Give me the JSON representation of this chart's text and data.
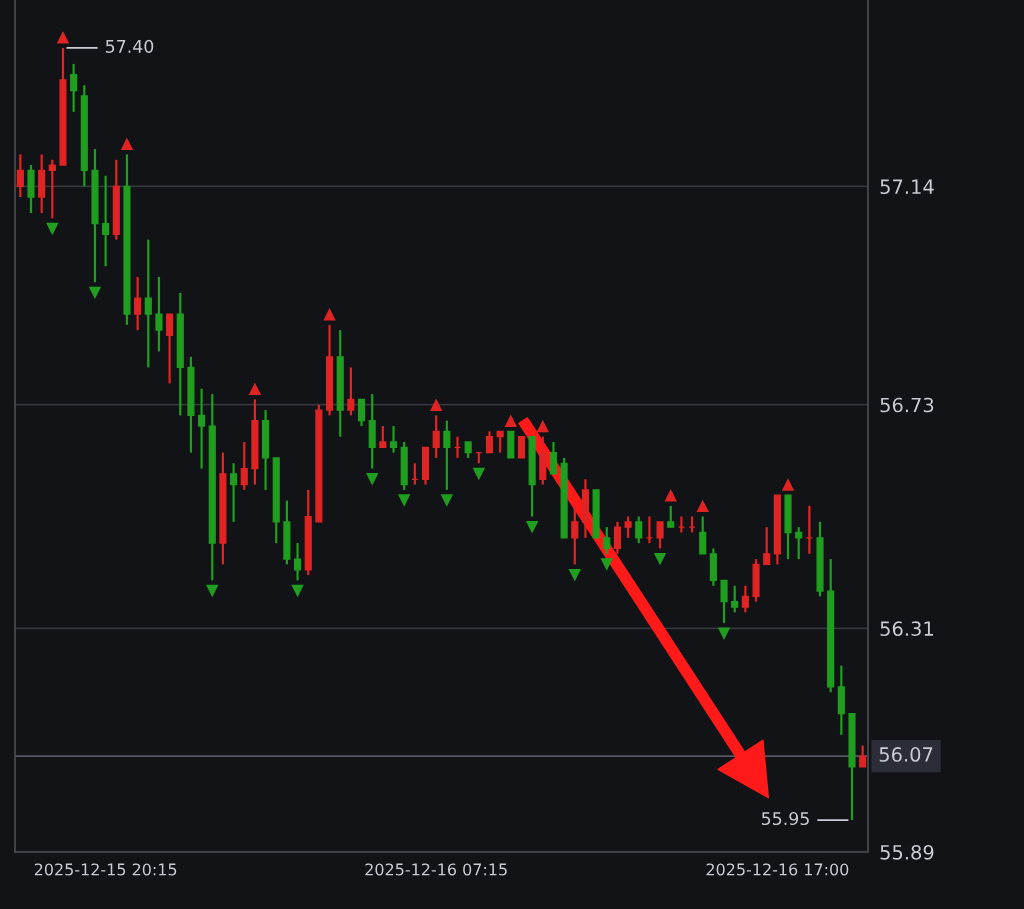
{
  "chart_data": {
    "type": "candlestick",
    "categories": [
      null,
      null,
      null,
      null,
      null,
      null,
      null,
      null,
      "2025-12-15 20:15",
      null,
      null,
      null,
      null,
      null,
      null,
      null,
      null,
      null,
      null,
      null,
      null,
      null,
      null,
      null,
      null,
      null,
      null,
      null,
      null,
      null,
      null,
      null,
      null,
      null,
      null,
      null,
      null,
      null,
      null,
      "2025-12-16 07:15",
      null,
      null,
      null,
      null,
      null,
      null,
      null,
      null,
      null,
      null,
      null,
      null,
      null,
      null,
      null,
      null,
      null,
      null,
      null,
      null,
      null,
      null,
      null,
      null,
      null,
      null,
      null,
      null,
      null,
      null,
      null,
      "2025-12-16 17:00",
      null,
      null,
      null,
      null,
      null,
      null,
      null,
      null
    ],
    "ohlc": [
      [
        57.14,
        57.2,
        57.12,
        57.17
      ],
      [
        57.17,
        57.18,
        57.09,
        57.12
      ],
      [
        57.12,
        57.2,
        57.09,
        57.17
      ],
      [
        57.17,
        57.19,
        57.08,
        57.18
      ],
      [
        57.18,
        57.4,
        57.18,
        57.34
      ],
      [
        57.35,
        57.37,
        57.28,
        57.32
      ],
      [
        57.31,
        57.33,
        57.14,
        57.17
      ],
      [
        57.17,
        57.21,
        56.96,
        57.07
      ],
      [
        57.07,
        57.16,
        56.99,
        57.05
      ],
      [
        57.05,
        57.19,
        57.04,
        57.14
      ],
      [
        57.14,
        57.2,
        56.88,
        56.9
      ],
      [
        56.9,
        56.97,
        56.87,
        56.93
      ],
      [
        56.93,
        57.04,
        56.8,
        56.9
      ],
      [
        56.9,
        56.97,
        56.83,
        56.87
      ],
      [
        56.86,
        56.9,
        56.77,
        56.9
      ],
      [
        56.9,
        56.94,
        56.71,
        56.8
      ],
      [
        56.8,
        56.82,
        56.64,
        56.71
      ],
      [
        56.71,
        56.76,
        56.61,
        56.69
      ],
      [
        56.69,
        56.75,
        56.4,
        56.47
      ],
      [
        56.47,
        56.64,
        56.43,
        56.6
      ],
      [
        56.6,
        56.62,
        56.51,
        56.58
      ],
      [
        56.58,
        56.66,
        56.57,
        56.61
      ],
      [
        56.61,
        56.74,
        56.58,
        56.7
      ],
      [
        56.7,
        56.72,
        56.57,
        56.63
      ],
      [
        56.63,
        56.63,
        56.47,
        56.51
      ],
      [
        56.51,
        56.55,
        56.43,
        56.44
      ],
      [
        56.44,
        56.47,
        56.4,
        56.42
      ],
      [
        56.42,
        56.57,
        56.41,
        56.52
      ],
      [
        56.51,
        56.73,
        56.51,
        56.72
      ],
      [
        56.72,
        56.88,
        56.71,
        56.82
      ],
      [
        56.82,
        56.87,
        56.67,
        56.72
      ],
      [
        56.72,
        56.8,
        56.71,
        56.74
      ],
      [
        56.74,
        56.74,
        56.69,
        56.7
      ],
      [
        56.7,
        56.75,
        56.61,
        56.65
      ],
      [
        56.65,
        56.69,
        56.65,
        56.66
      ],
      [
        56.66,
        56.69,
        56.64,
        56.65
      ],
      [
        56.65,
        56.66,
        56.57,
        56.58
      ],
      [
        56.59,
        56.62,
        56.58,
        56.59
      ],
      [
        56.59,
        56.65,
        56.58,
        56.65
      ],
      [
        56.65,
        56.71,
        56.63,
        56.68
      ],
      [
        56.68,
        56.7,
        56.57,
        56.65
      ],
      [
        56.65,
        56.67,
        56.63,
        56.65
      ],
      [
        56.66,
        56.66,
        56.63,
        56.64
      ],
      [
        56.64,
        56.64,
        56.62,
        56.64
      ],
      [
        56.64,
        56.68,
        56.64,
        56.67
      ],
      [
        56.67,
        56.68,
        56.64,
        56.68
      ],
      [
        56.68,
        56.68,
        56.63,
        56.63
      ],
      [
        56.63,
        56.67,
        56.63,
        56.67
      ],
      [
        56.67,
        56.67,
        56.52,
        56.58
      ],
      [
        56.59,
        56.67,
        56.58,
        56.64
      ],
      [
        56.64,
        56.66,
        56.6,
        56.6
      ],
      [
        56.62,
        56.63,
        56.48,
        56.48
      ],
      [
        56.48,
        56.54,
        56.43,
        56.51
      ],
      [
        56.51,
        56.59,
        56.48,
        56.57
      ],
      [
        56.57,
        56.57,
        56.48,
        56.48
      ],
      [
        56.48,
        56.5,
        56.45,
        56.46
      ],
      [
        56.46,
        56.51,
        56.45,
        56.5
      ],
      [
        56.5,
        56.52,
        56.48,
        56.51
      ],
      [
        56.51,
        56.52,
        56.47,
        56.48
      ],
      [
        56.48,
        56.52,
        56.47,
        56.48
      ],
      [
        56.48,
        56.51,
        56.46,
        56.51
      ],
      [
        56.51,
        56.54,
        56.5,
        56.5
      ],
      [
        56.5,
        56.52,
        56.49,
        56.5
      ],
      [
        56.5,
        56.52,
        56.49,
        56.5
      ],
      [
        56.49,
        56.52,
        56.45,
        56.45
      ],
      [
        56.45,
        56.46,
        56.39,
        56.4
      ],
      [
        56.4,
        56.4,
        56.32,
        56.36
      ],
      [
        56.36,
        56.39,
        56.34,
        56.35
      ],
      [
        56.35,
        56.39,
        56.34,
        56.37
      ],
      [
        56.37,
        56.44,
        56.36,
        56.43
      ],
      [
        56.43,
        56.5,
        56.43,
        56.45
      ],
      [
        56.45,
        56.56,
        56.43,
        56.56
      ],
      [
        56.56,
        56.56,
        56.44,
        56.49
      ],
      [
        56.49,
        56.5,
        56.44,
        56.48
      ],
      [
        56.48,
        56.54,
        56.45,
        56.48
      ],
      [
        56.48,
        56.51,
        56.37,
        56.38
      ],
      [
        56.38,
        56.44,
        56.19,
        56.2
      ],
      [
        56.2,
        56.24,
        56.11,
        56.15
      ],
      [
        56.15,
        56.15,
        55.95,
        56.05
      ],
      [
        56.05,
        56.09,
        56.05,
        56.07
      ]
    ],
    "colors": [
      "#e02424",
      "#1f9e1f",
      "#e02424",
      "#e02424",
      "#e02424",
      "#1f9e1f",
      "#1f9e1f",
      "#1f9e1f",
      "#1f9e1f",
      "#e02424",
      "#1f9e1f",
      "#e02424",
      "#1f9e1f",
      "#1f9e1f",
      "#e02424",
      "#1f9e1f",
      "#1f9e1f",
      "#1f9e1f",
      "#1f9e1f",
      "#e02424",
      "#1f9e1f",
      "#e02424",
      "#e02424",
      "#1f9e1f",
      "#1f9e1f",
      "#1f9e1f",
      "#1f9e1f",
      "#e02424",
      "#e02424",
      "#e02424",
      "#1f9e1f",
      "#e02424",
      "#1f9e1f",
      "#1f9e1f",
      "#e02424",
      "#1f9e1f",
      "#1f9e1f",
      "#e02424",
      "#e02424",
      "#e02424",
      "#1f9e1f",
      "#e02424",
      "#1f9e1f",
      "#e02424",
      "#e02424",
      "#e02424",
      "#1f9e1f",
      "#e02424",
      "#1f9e1f",
      "#e02424",
      "#1f9e1f",
      "#1f9e1f",
      "#e02424",
      "#e02424",
      "#1f9e1f",
      "#1f9e1f",
      "#e02424",
      "#e02424",
      "#1f9e1f",
      "#e02424",
      "#e02424",
      "#1f9e1f",
      "#e02424",
      "#e02424",
      "#1f9e1f",
      "#1f9e1f",
      "#1f9e1f",
      "#1f9e1f",
      "#e02424",
      "#e02424",
      "#e02424",
      "#e02424",
      "#1f9e1f",
      "#1f9e1f",
      "#e02424",
      "#1f9e1f",
      "#1f9e1f",
      "#1f9e1f",
      "#1f9e1f",
      "#e02424"
    ],
    "series": [
      {
        "type": "scatter",
        "marker": "triangle",
        "color": "#e02424",
        "values": [
          null,
          null,
          null,
          null,
          57.42,
          null,
          null,
          null,
          null,
          null,
          57.22,
          null,
          null,
          null,
          null,
          null,
          null,
          null,
          null,
          null,
          null,
          null,
          56.76,
          null,
          null,
          null,
          null,
          null,
          null,
          56.9,
          null,
          null,
          null,
          null,
          null,
          null,
          null,
          null,
          null,
          56.73,
          null,
          null,
          null,
          null,
          null,
          null,
          56.7,
          null,
          null,
          56.69,
          null,
          null,
          null,
          null,
          null,
          null,
          null,
          null,
          null,
          null,
          null,
          56.56,
          null,
          null,
          56.54,
          null,
          null,
          null,
          null,
          null,
          null,
          null,
          56.58,
          null,
          null,
          null,
          null,
          null,
          null,
          null
        ]
      },
      {
        "type": "scatter",
        "marker": "triangle",
        "color": "#1f9e1f",
        "values": [
          null,
          null,
          null,
          57.06,
          null,
          null,
          null,
          56.94,
          null,
          null,
          null,
          null,
          null,
          null,
          null,
          null,
          null,
          null,
          56.38,
          null,
          null,
          null,
          null,
          null,
          null,
          null,
          56.38,
          null,
          null,
          null,
          null,
          null,
          null,
          56.59,
          null,
          null,
          56.55,
          null,
          null,
          null,
          56.55,
          null,
          null,
          56.6,
          null,
          null,
          null,
          null,
          56.5,
          null,
          null,
          null,
          56.41,
          null,
          null,
          56.43,
          null,
          null,
          null,
          null,
          56.44,
          null,
          null,
          null,
          null,
          null,
          56.3,
          null,
          null,
          null,
          null,
          null,
          null,
          null,
          null,
          null,
          null,
          null,
          null,
          null
        ]
      }
    ],
    "ylim": [
      55.89,
      57.49
    ],
    "yticks": [
      57.14,
      56.73,
      56.31,
      55.89
    ],
    "grid": "y",
    "ref_lines": [
      {
        "axis": "y",
        "value": 56.07,
        "label": "56.07",
        "color": "#55585f"
      }
    ],
    "annotations": [
      "57.40",
      "55.95"
    ]
  }
}
